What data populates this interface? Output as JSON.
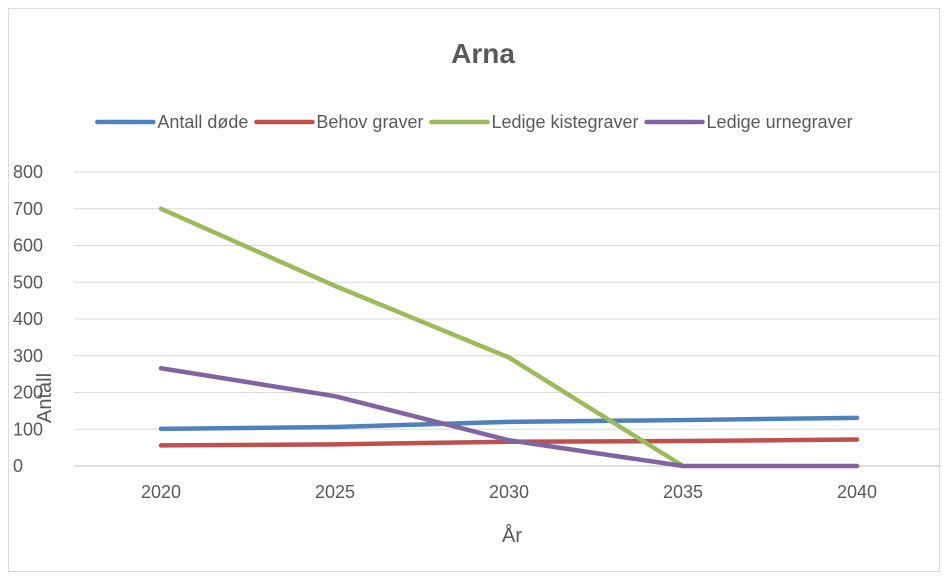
{
  "chart_data": {
    "type": "line",
    "title": "Arna",
    "xlabel": "År",
    "ylabel": "Antall",
    "categories": [
      "2020",
      "2025",
      "2030",
      "2035",
      "2040"
    ],
    "ylim": [
      0,
      800
    ],
    "yticks": [
      "0",
      "100",
      "200",
      "300",
      "400",
      "500",
      "600",
      "700",
      "800"
    ],
    "grid": true,
    "legend_position": "top",
    "series": [
      {
        "name": "Antall døde",
        "color": "#4f81bd",
        "values": [
          101,
          106,
          120,
          125,
          131
        ]
      },
      {
        "name": "Behov graver",
        "color": "#c0504d",
        "values": [
          56,
          59,
          66,
          68,
          72
        ]
      },
      {
        "name": "Ledige kistegraver",
        "color": "#9bbb59",
        "values": [
          700,
          490,
          295,
          0,
          null
        ]
      },
      {
        "name": "Ledige urnegraver",
        "color": "#8064a2",
        "values": [
          266,
          190,
          70,
          0,
          0
        ]
      }
    ]
  }
}
